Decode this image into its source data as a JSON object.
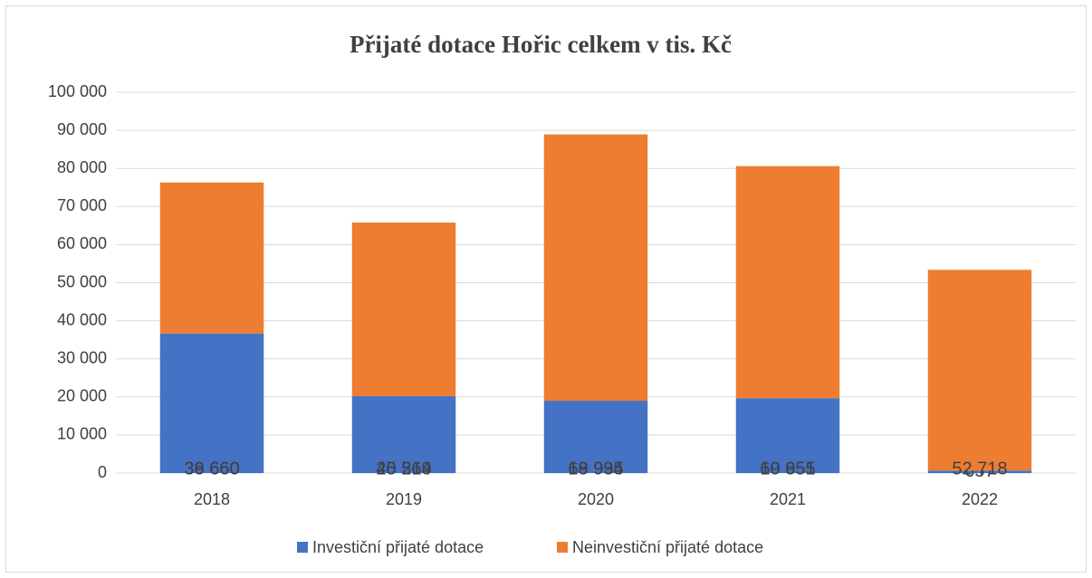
{
  "chart_data": {
    "type": "stacked_bar",
    "title": "Přijaté dotace Hořic celkem v tis. Kč",
    "categories": [
      "2018",
      "2019",
      "2020",
      "2021",
      "2022"
    ],
    "series": [
      {
        "name": "Investiční přijaté dotace",
        "color": "#4472c4",
        "values": [
          36660,
          20214,
          18994,
          19655,
          657
        ],
        "value_labels": [
          "36 660",
          "20 214",
          "18 994",
          "19 655",
          "657"
        ]
      },
      {
        "name": "Neinvestiční přijaté dotace",
        "color": "#ed7d31",
        "values": [
          39660,
          45569,
          69935,
          60951,
          52718
        ],
        "value_labels": [
          "39 660",
          "45 569",
          "69 935",
          "60 951",
          "52 718"
        ]
      }
    ],
    "ylim": [
      0,
      100000
    ],
    "yticks": [
      0,
      {
        "value": 10000,
        "label": "10 000"
      },
      {
        "value": 20000,
        "label": "20 000"
      },
      {
        "value": 30000,
        "label": "30 000"
      },
      {
        "value": 40000,
        "label": "40 000"
      },
      {
        "value": 50000,
        "label": "50 000"
      },
      {
        "value": 60000,
        "label": "60 000"
      },
      {
        "value": 70000,
        "label": "70 000"
      },
      {
        "value": 80000,
        "label": "80 000"
      },
      {
        "value": 90000,
        "label": "90 000"
      },
      {
        "value": 100000,
        "label": "100 000"
      }
    ],
    "grid": true,
    "legend": "bottom"
  }
}
